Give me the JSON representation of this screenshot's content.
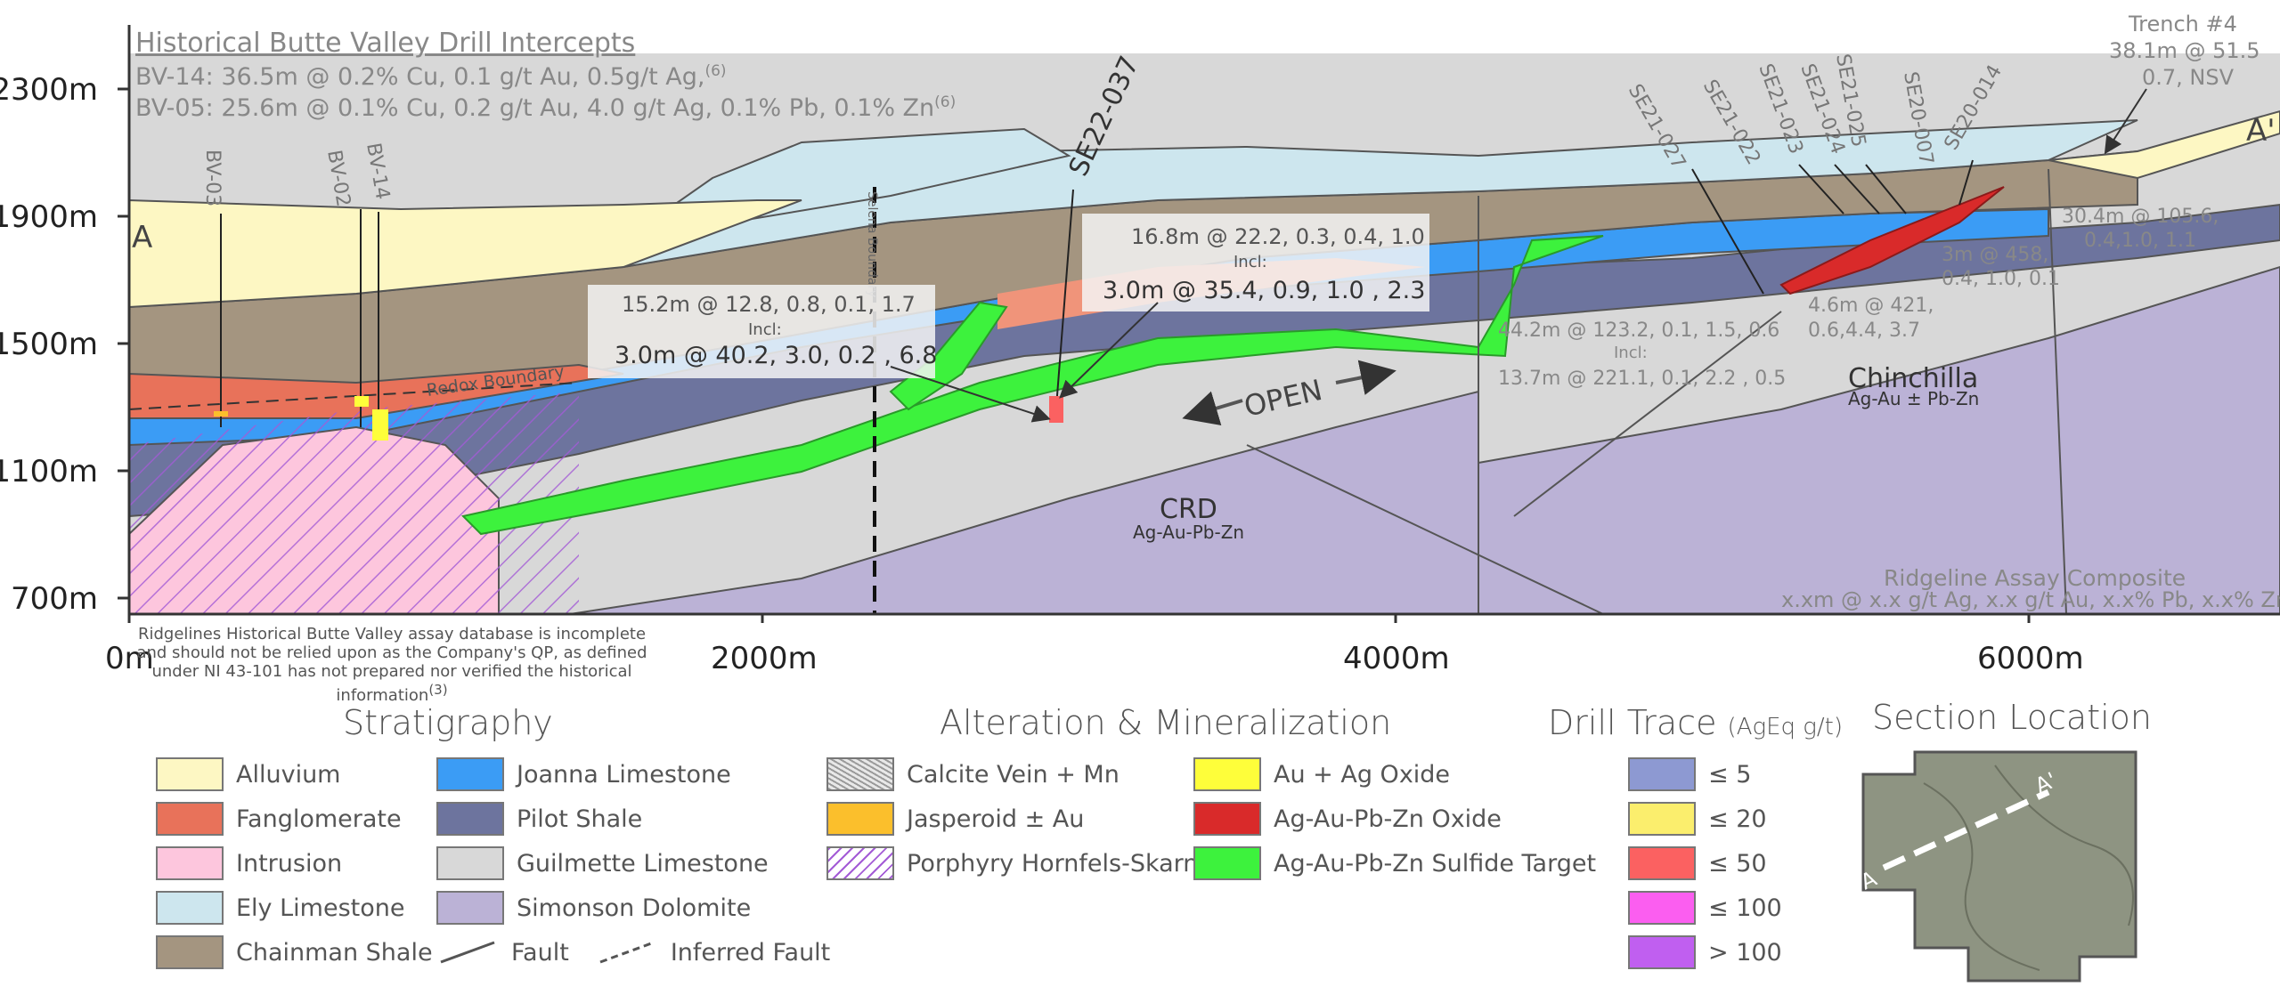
{
  "header": {
    "title": "Historical Butte Valley Drill Intercepts",
    "line1": "BV-14: 36.5m @ 0.2% Cu, 0.1 g/t Au, 0.5g/t Ag,",
    "line1_sup": "(6)",
    "line2": "BV-05: 25.6m @ 0.1% Cu, 0.2 g/t Au, 4.0 g/t Ag, 0.1% Pb, 0.1% Zn",
    "line2_sup": "(6)"
  },
  "axes": {
    "y_ticks": [
      "2300m",
      "1900m",
      "1500m",
      "1100m",
      "700m"
    ],
    "x_ticks": [
      "0m",
      "2000m",
      "4000m",
      "6000m"
    ]
  },
  "section_ends": {
    "start": "A",
    "end": "A'"
  },
  "section_labels": {
    "selena_boundary": "Selena Boundary",
    "redox_boundary": "Redox Boundary",
    "open": "OPEN",
    "crd": "CRD",
    "crd_sub": "Ag-Au-Pb-Zn",
    "chinchilla": "Chinchilla",
    "chinchilla_sub": "Ag-Au ± Pb-Zn",
    "ridgeline_title": "Ridgeline Assay Composite",
    "ridgeline_format": "x.xm @ x.x g/t Ag, x.x g/t Au, x.x% Pb, x.x% Zn"
  },
  "drillholes": [
    "BV-03",
    "BV-02",
    "BV-14",
    "SE22-037",
    "SE21-027",
    "SE21-022",
    "SE21-023",
    "SE21-024",
    "SE21-025",
    "SE20-007",
    "SE20-014"
  ],
  "trench": {
    "label": "Trench #4",
    "line1": "38.1m @ 51.5",
    "line2": "0.7, NSV"
  },
  "intercepts": {
    "a_line1": "15.2m @ 12.8, 0.8, 0.1, 1.7",
    "a_incl": "Incl:",
    "a_line2": "3.0m @ 40.2, 3.0, 0.2 , 6.8",
    "b_line1": "16.8m @ 22.2, 0.3, 0.4, 1.0",
    "b_incl": "Incl:",
    "b_line2": "3.0m @ 35.4, 0.9, 1.0 , 2.3",
    "c_line1": "44.2m @ 123.2, 0.1, 1.5, 0.6",
    "c_incl": "Incl:",
    "c_line2": "13.7m @ 221.1, 0.1, 2.2 , 0.5",
    "d_line1": "4.6m @ 421,",
    "d_line2": "0.6,4.4, 3.7",
    "e_line1": "3m @ 458,",
    "e_line2": "0.4, 1.0, 0.1",
    "f_line1": "30.4m @ 105.6,",
    "f_line2": "0.4,1.0, 1.1"
  },
  "disclaimer": {
    "text": "Ridgelines Historical Butte Valley assay database is incomplete and should not be relied upon as the Company's QP, as defined under NI 43-101 has not prepared nor verified the historical information",
    "sup": "(3)"
  },
  "legend": {
    "stratigraphy": {
      "title": "Stratigraphy",
      "items": [
        {
          "label": "Alluvium",
          "color": "#fdf7c3"
        },
        {
          "label": "Fanglomerate",
          "color": "#e8725a"
        },
        {
          "label": "Intrusion",
          "color": "#fdc6dd"
        },
        {
          "label": "Ely Limestone",
          "color": "#cde6ee"
        },
        {
          "label": "Chainman Shale",
          "color": "#a49580"
        },
        {
          "label": "Joanna Limestone",
          "color": "#3b9cf5"
        },
        {
          "label": "Pilot Shale",
          "color": "#6d749e"
        },
        {
          "label": "Guilmette Limestone",
          "color": "#d8d8d8"
        },
        {
          "label": "Simonson Dolomite",
          "color": "#bbb2d6"
        }
      ],
      "fault": "Fault",
      "inferred_fault": "Inferred Fault"
    },
    "alteration": {
      "title": "Alteration & Mineralization",
      "items": [
        {
          "label": "Calcite Vein + Mn",
          "color": "#cfcfcf"
        },
        {
          "label": "Jasperoid ± Au",
          "color": "#fbbf2c"
        },
        {
          "label": "Porphyry Hornfels-Skarn",
          "color": "#ffffff"
        },
        {
          "label": "Au + Ag Oxide",
          "color": "#fefe3a"
        },
        {
          "label": "Ag-Au-Pb-Zn Oxide",
          "color": "#d92a2a"
        },
        {
          "label": "Ag-Au-Pb-Zn Sulfide Target",
          "color": "#3df23d"
        }
      ]
    },
    "drill_trace": {
      "title": "Drill Trace",
      "units": "(AgEq g/t)",
      "items": [
        {
          "label": "≤ 5",
          "color": "#8d99d2"
        },
        {
          "label": "≤ 20",
          "color": "#fbee6d"
        },
        {
          "label": "≤ 50",
          "color": "#fb6161"
        },
        {
          "label": "≤ 100",
          "color": "#fb5ef0"
        },
        {
          "label": "> 100",
          "color": "#c05ff0"
        }
      ]
    },
    "section_location": {
      "title": "Section Location",
      "start": "A",
      "end": "A'"
    }
  }
}
